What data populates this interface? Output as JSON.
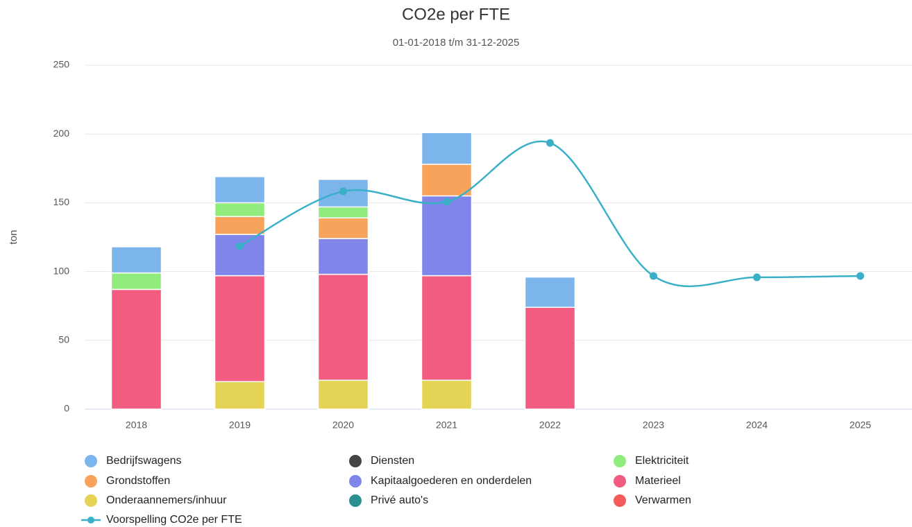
{
  "chart_data": {
    "type": "bar",
    "stacked": true,
    "title": "CO2e per FTE",
    "subtitle": "01-01-2018 t/m 31-12-2025",
    "y_label": "ton",
    "categories": [
      "2018",
      "2019",
      "2020",
      "2021",
      "2022",
      "2023",
      "2024",
      "2025"
    ],
    "ylim": [
      0,
      250
    ],
    "yticks": [
      0,
      50,
      100,
      150,
      200,
      250
    ],
    "grid": true,
    "series": [
      {
        "name": "Bedrijfswagens",
        "color": "#7cb5ec",
        "values": [
          19,
          19,
          20,
          23,
          22,
          null,
          null,
          null
        ]
      },
      {
        "name": "Diensten",
        "color": "#434348",
        "values": [
          null,
          null,
          null,
          null,
          null,
          null,
          null,
          null
        ]
      },
      {
        "name": "Elektriciteit",
        "color": "#90ed7d",
        "values": [
          12,
          10,
          8,
          null,
          null,
          null,
          null,
          null
        ]
      },
      {
        "name": "Grondstoffen",
        "color": "#f7a35c",
        "values": [
          null,
          13,
          15,
          23,
          null,
          null,
          null,
          null
        ]
      },
      {
        "name": "Kapitaalgoederen en onderdelen",
        "color": "#8085e9",
        "values": [
          null,
          30,
          26,
          58,
          null,
          null,
          null,
          null
        ]
      },
      {
        "name": "Materieel",
        "color": "#f15c80",
        "values": [
          87,
          77,
          77,
          76,
          74,
          null,
          null,
          null
        ]
      },
      {
        "name": "Onderaannemers/inhuur",
        "color": "#e4d354",
        "values": [
          null,
          20,
          21,
          21,
          null,
          null,
          null,
          null
        ]
      },
      {
        "name": "Privé auto's",
        "color": "#2b908f",
        "values": [
          null,
          null,
          null,
          null,
          null,
          null,
          null,
          null
        ]
      },
      {
        "name": "Verwarmen",
        "color": "#f45b5b",
        "values": [
          null,
          null,
          null,
          null,
          null,
          null,
          null,
          null
        ]
      },
      {
        "name": "Voorspelling CO2e per FTE",
        "color": "#3ab0c8",
        "type": "line",
        "values": [
          null,
          118.4,
          158.3,
          150.7,
          193.5,
          96.8,
          95.8,
          96.8
        ]
      }
    ]
  }
}
